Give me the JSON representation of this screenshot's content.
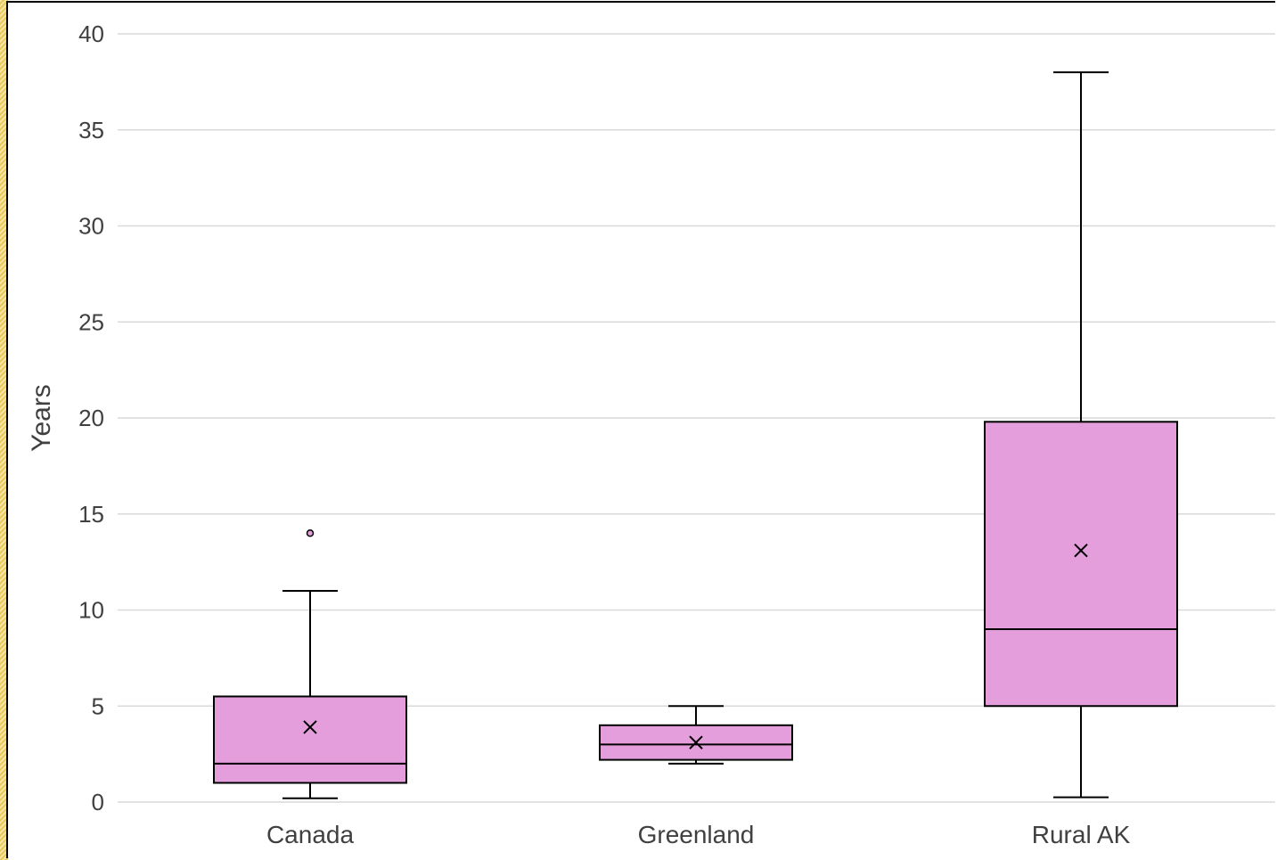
{
  "chart_data": {
    "type": "box",
    "title": "",
    "xlabel": "",
    "ylabel": "Years",
    "ylim": [
      0,
      40
    ],
    "yticks": [
      0,
      5,
      10,
      15,
      20,
      25,
      30,
      35,
      40
    ],
    "grid": true,
    "legend": "none",
    "box_color": "#e39edb",
    "line_color": "#000000",
    "grid_color": "#d9d9d9",
    "categories": [
      "Canada",
      "Greenland",
      "Rural AK"
    ],
    "boxes": [
      {
        "category": "Canada",
        "min": 0.2,
        "q1": 1,
        "median": 2,
        "q3": 5.5,
        "max": 11,
        "mean": 3.9,
        "outliers": [
          14
        ]
      },
      {
        "category": "Greenland",
        "min": 2,
        "q1": 2.2,
        "median": 3,
        "q3": 4,
        "max": 5,
        "mean": 3.1,
        "outliers": []
      },
      {
        "category": "Rural AK",
        "min": 0.25,
        "q1": 5,
        "median": 9,
        "q3": 19.8,
        "max": 38,
        "mean": 13.1,
        "outliers": []
      }
    ]
  }
}
